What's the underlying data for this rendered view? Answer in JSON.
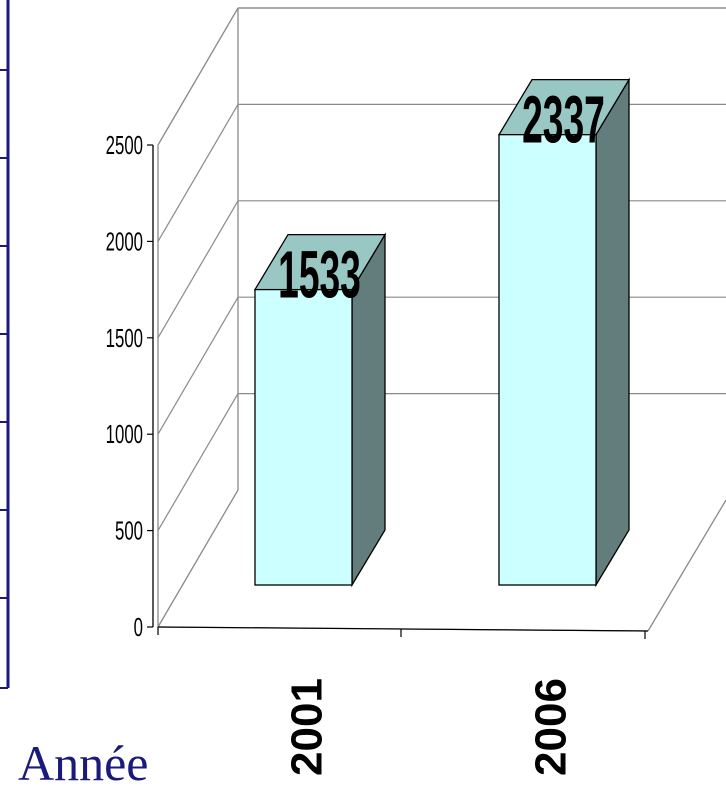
{
  "chart_data": {
    "type": "bar",
    "style": "3d",
    "categories": [
      "2001",
      "2006"
    ],
    "values": [
      1533,
      2337
    ],
    "data_labels": [
      "1533",
      "2337"
    ],
    "xlabel": "Année",
    "ylabel": "",
    "yticks": [
      "0",
      "500",
      "1000",
      "1500",
      "2000",
      "2500"
    ],
    "ylim": [
      0,
      2500
    ],
    "grid": true,
    "legend": "none",
    "colors": {
      "bar_front": "#ccffff",
      "bar_top": "#99c7c4",
      "bar_side": "#637c7c",
      "frame": "#8a8a8a",
      "axis_title": "#1a1a7a",
      "left_panel_border": "#1a1a7a"
    }
  }
}
